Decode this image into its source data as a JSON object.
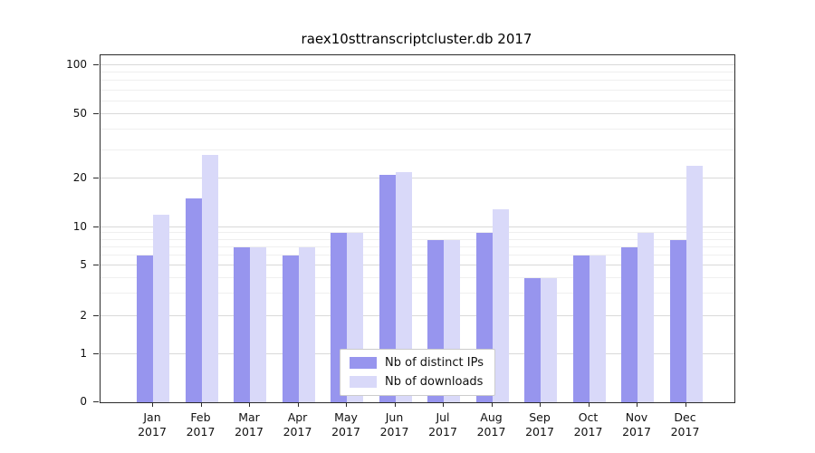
{
  "chart_data": {
    "type": "bar",
    "title": "raex10sttranscriptcluster.db 2017",
    "year_label": "2017",
    "categories": [
      "Jan",
      "Feb",
      "Mar",
      "Apr",
      "May",
      "Jun",
      "Jul",
      "Aug",
      "Sep",
      "Oct",
      "Nov",
      "Dec"
    ],
    "series": [
      {
        "name": "Nb of distinct IPs",
        "color": "#9795ee",
        "values": [
          6,
          15,
          7,
          6,
          9,
          21,
          8,
          9,
          4,
          6,
          7,
          8
        ]
      },
      {
        "name": "Nb of downloads",
        "color": "#d9d9f9",
        "values": [
          12,
          28,
          7,
          7,
          9,
          22,
          8,
          13,
          4,
          6,
          9,
          24
        ]
      }
    ],
    "yticks": [
      0,
      1,
      2,
      5,
      10,
      20,
      50,
      100
    ],
    "minor_gridlines": [
      3,
      4,
      6,
      7,
      8,
      9,
      30,
      40,
      60,
      70,
      80,
      90
    ],
    "ylim": [
      0,
      100
    ],
    "scale": "symlog",
    "grid": "horizontal",
    "legend_position": "lower center"
  }
}
